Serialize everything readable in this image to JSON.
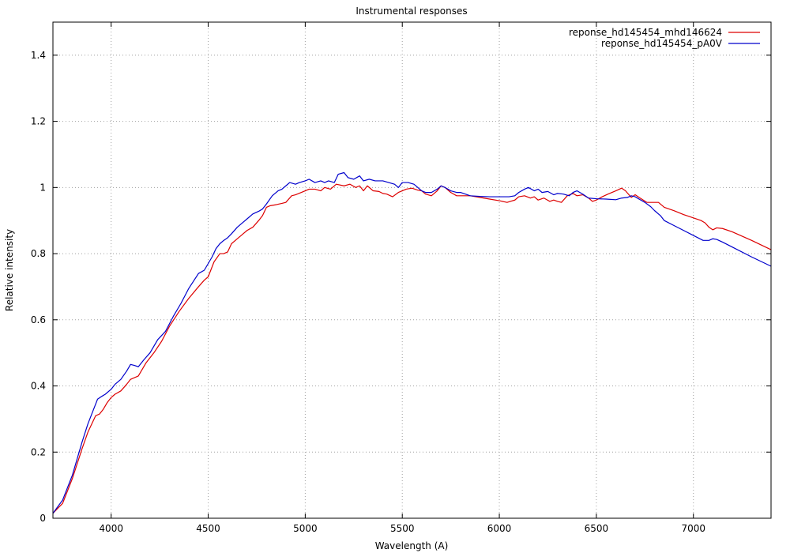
{
  "chart_data": {
    "type": "line",
    "title": "Instrumental responses",
    "xlabel": "Wavelength (A)",
    "ylabel": "Relative intensity",
    "xlim": [
      3700,
      7400
    ],
    "ylim": [
      0,
      1.5
    ],
    "xticks": [
      4000,
      4500,
      5000,
      5500,
      6000,
      6500,
      7000
    ],
    "yticks": [
      0,
      0.2,
      0.4,
      0.6,
      0.8,
      1,
      1.2,
      1.4
    ],
    "grid": true,
    "legend_position": "top-right",
    "series": [
      {
        "name": "reponse_hd145454_mhd146624",
        "color": "#dd0000",
        "x": [
          3700,
          3750,
          3800,
          3850,
          3880,
          3920,
          3940,
          3960,
          3980,
          4000,
          4020,
          4050,
          4080,
          4100,
          4120,
          4140,
          4180,
          4220,
          4260,
          4300,
          4350,
          4400,
          4450,
          4480,
          4500,
          4530,
          4560,
          4580,
          4600,
          4620,
          4650,
          4680,
          4700,
          4730,
          4760,
          4780,
          4800,
          4820,
          4850,
          4880,
          4900,
          4930,
          4950,
          4980,
          5000,
          5020,
          5050,
          5080,
          5100,
          5130,
          5160,
          5200,
          5230,
          5260,
          5280,
          5300,
          5320,
          5350,
          5380,
          5400,
          5420,
          5450,
          5480,
          5500,
          5520,
          5550,
          5580,
          5600,
          5620,
          5650,
          5680,
          5700,
          5720,
          5750,
          5780,
          5800,
          5850,
          5900,
          5950,
          6000,
          6040,
          6080,
          6100,
          6130,
          6160,
          6180,
          6200,
          6230,
          6260,
          6280,
          6300,
          6320,
          6350,
          6380,
          6400,
          6430,
          6460,
          6480,
          6500,
          6530,
          6560,
          6600,
          6630,
          6650,
          6680,
          6700,
          6720,
          6760,
          6800,
          6820,
          6850,
          6900,
          6950,
          7000,
          7040,
          7060,
          7080,
          7100,
          7120,
          7150,
          7200,
          7300,
          7400
        ],
        "y": [
          0.015,
          0.045,
          0.12,
          0.21,
          0.26,
          0.31,
          0.315,
          0.33,
          0.35,
          0.365,
          0.375,
          0.385,
          0.405,
          0.42,
          0.425,
          0.43,
          0.47,
          0.5,
          0.535,
          0.58,
          0.625,
          0.665,
          0.7,
          0.72,
          0.73,
          0.775,
          0.8,
          0.8,
          0.805,
          0.83,
          0.845,
          0.86,
          0.87,
          0.88,
          0.9,
          0.915,
          0.94,
          0.945,
          0.948,
          0.952,
          0.955,
          0.975,
          0.978,
          0.985,
          0.99,
          0.995,
          0.995,
          0.99,
          1.0,
          0.995,
          1.01,
          1.005,
          1.01,
          1.0,
          1.005,
          0.99,
          1.005,
          0.99,
          0.988,
          0.982,
          0.98,
          0.972,
          0.985,
          0.99,
          0.995,
          0.998,
          0.992,
          0.99,
          0.98,
          0.975,
          0.99,
          1.005,
          1.0,
          0.985,
          0.975,
          0.975,
          0.975,
          0.97,
          0.965,
          0.96,
          0.955,
          0.962,
          0.972,
          0.975,
          0.968,
          0.972,
          0.962,
          0.968,
          0.958,
          0.962,
          0.958,
          0.955,
          0.975,
          0.982,
          0.975,
          0.978,
          0.968,
          0.958,
          0.962,
          0.972,
          0.98,
          0.99,
          0.998,
          0.99,
          0.97,
          0.978,
          0.97,
          0.955,
          0.955,
          0.955,
          0.94,
          0.93,
          0.918,
          0.908,
          0.9,
          0.893,
          0.88,
          0.872,
          0.878,
          0.876,
          0.866,
          0.84,
          0.812
        ]
      },
      {
        "name": "reponse_hd145454_pA0V",
        "color": "#0000cc",
        "x": [
          3700,
          3750,
          3800,
          3850,
          3880,
          3910,
          3930,
          3950,
          3970,
          4000,
          4020,
          4050,
          4080,
          4100,
          4120,
          4140,
          4170,
          4200,
          4240,
          4280,
          4320,
          4360,
          4400,
          4450,
          4480,
          4500,
          4520,
          4540,
          4560,
          4580,
          4600,
          4620,
          4650,
          4680,
          4700,
          4730,
          4760,
          4780,
          4800,
          4830,
          4860,
          4880,
          4900,
          4920,
          4950,
          4970,
          5000,
          5020,
          5050,
          5080,
          5100,
          5120,
          5150,
          5170,
          5200,
          5220,
          5250,
          5280,
          5300,
          5330,
          5360,
          5400,
          5430,
          5460,
          5480,
          5500,
          5530,
          5560,
          5580,
          5600,
          5620,
          5650,
          5680,
          5700,
          5720,
          5750,
          5780,
          5800,
          5850,
          5900,
          5950,
          6000,
          6050,
          6080,
          6100,
          6130,
          6150,
          6180,
          6200,
          6220,
          6250,
          6280,
          6300,
          6330,
          6360,
          6380,
          6400,
          6430,
          6460,
          6500,
          6550,
          6600,
          6630,
          6660,
          6680,
          6700,
          6720,
          6750,
          6780,
          6800,
          6830,
          6850,
          6900,
          6950,
          7000,
          7050,
          7080,
          7100,
          7120,
          7150,
          7200,
          7300,
          7400
        ],
        "y": [
          0.015,
          0.055,
          0.13,
          0.23,
          0.285,
          0.33,
          0.36,
          0.368,
          0.375,
          0.39,
          0.405,
          0.42,
          0.445,
          0.465,
          0.462,
          0.458,
          0.48,
          0.5,
          0.54,
          0.565,
          0.61,
          0.65,
          0.695,
          0.74,
          0.75,
          0.77,
          0.79,
          0.815,
          0.83,
          0.84,
          0.848,
          0.86,
          0.88,
          0.895,
          0.905,
          0.92,
          0.928,
          0.935,
          0.95,
          0.975,
          0.99,
          0.995,
          1.005,
          1.015,
          1.01,
          1.015,
          1.02,
          1.025,
          1.015,
          1.02,
          1.015,
          1.02,
          1.015,
          1.04,
          1.045,
          1.03,
          1.025,
          1.035,
          1.02,
          1.025,
          1.02,
          1.02,
          1.015,
          1.01,
          1.0,
          1.015,
          1.015,
          1.01,
          1.0,
          0.99,
          0.985,
          0.985,
          0.995,
          1.005,
          1.0,
          0.99,
          0.985,
          0.985,
          0.975,
          0.973,
          0.972,
          0.972,
          0.972,
          0.975,
          0.985,
          0.995,
          1.0,
          0.99,
          0.995,
          0.985,
          0.988,
          0.978,
          0.982,
          0.98,
          0.975,
          0.985,
          0.99,
          0.98,
          0.968,
          0.966,
          0.965,
          0.963,
          0.968,
          0.97,
          0.975,
          0.972,
          0.965,
          0.955,
          0.942,
          0.93,
          0.915,
          0.9,
          0.885,
          0.87,
          0.855,
          0.84,
          0.84,
          0.845,
          0.843,
          0.835,
          0.82,
          0.79,
          0.762
        ]
      }
    ]
  }
}
